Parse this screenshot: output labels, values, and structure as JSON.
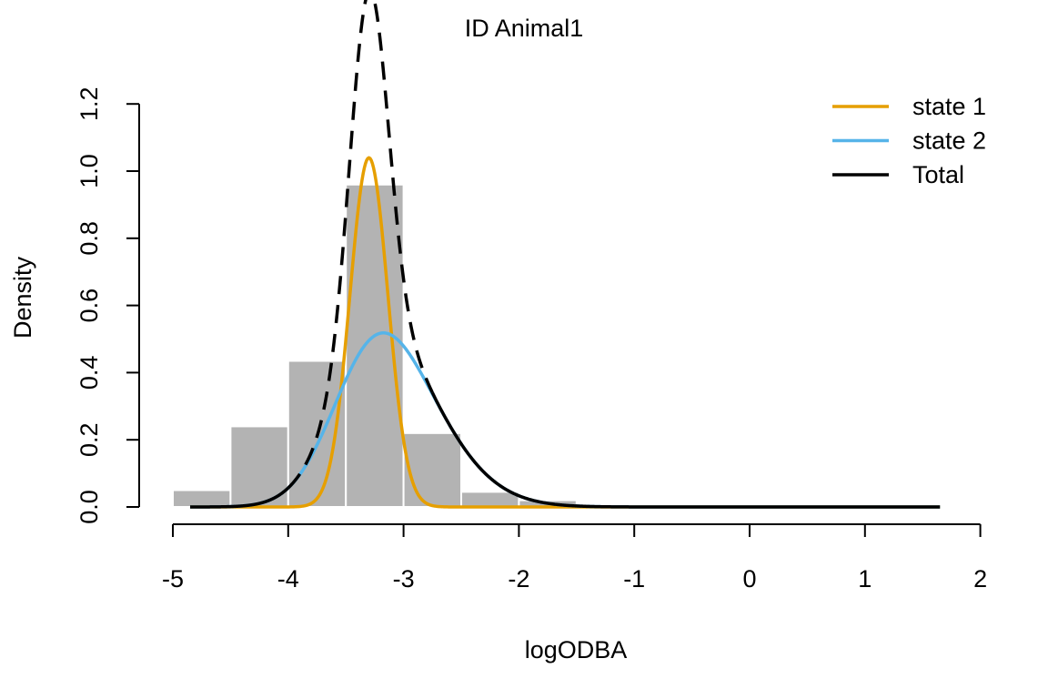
{
  "chart_data": {
    "type": "histogram-density",
    "title": "ID Animal1",
    "xlabel": "logODBA",
    "ylabel": "Density",
    "xlim": [
      -5,
      2
    ],
    "ylim": [
      0,
      1.2
    ],
    "x_ticks": [
      "-5",
      "-4",
      "-3",
      "-2",
      "-1",
      "0",
      "1",
      "2"
    ],
    "y_ticks": [
      "0.0",
      "0.2",
      "0.4",
      "0.6",
      "0.8",
      "1.0",
      "1.2"
    ],
    "grid": false,
    "legend_position": "top-right",
    "histogram": {
      "color": "#b3b3b3",
      "bins": [
        {
          "x0": -5.0,
          "x1": -4.5,
          "density": 0.05
        },
        {
          "x0": -4.5,
          "x1": -4.0,
          "density": 0.24
        },
        {
          "x0": -4.0,
          "x1": -3.5,
          "density": 0.435
        },
        {
          "x0": -3.5,
          "x1": -3.0,
          "density": 0.96
        },
        {
          "x0": -3.0,
          "x1": -2.5,
          "density": 0.22
        },
        {
          "x0": -2.5,
          "x1": -2.0,
          "density": 0.045
        },
        {
          "x0": -2.0,
          "x1": -1.5,
          "density": 0.02
        },
        {
          "x0": -1.5,
          "x1": -1.0,
          "density": 0.004
        }
      ]
    },
    "x_range": [
      -4.85,
      1.65
    ],
    "series": [
      {
        "name": "state 1",
        "color": "#e69f00",
        "dash": "solid",
        "mixture_weight": 0.43,
        "mean": -3.3,
        "sd": 0.165
      },
      {
        "name": "state 2",
        "color": "#56b4e9",
        "dash": "solid",
        "mixture_weight": 0.57,
        "mean": -3.5,
        "sd": 0.6,
        "skew_alpha": 1.5,
        "tail_rate": 1.25,
        "tail_start": -2.7
      },
      {
        "name": "Total",
        "color": "#000000",
        "dash": "dashed-center / solid-tails"
      }
    ]
  }
}
